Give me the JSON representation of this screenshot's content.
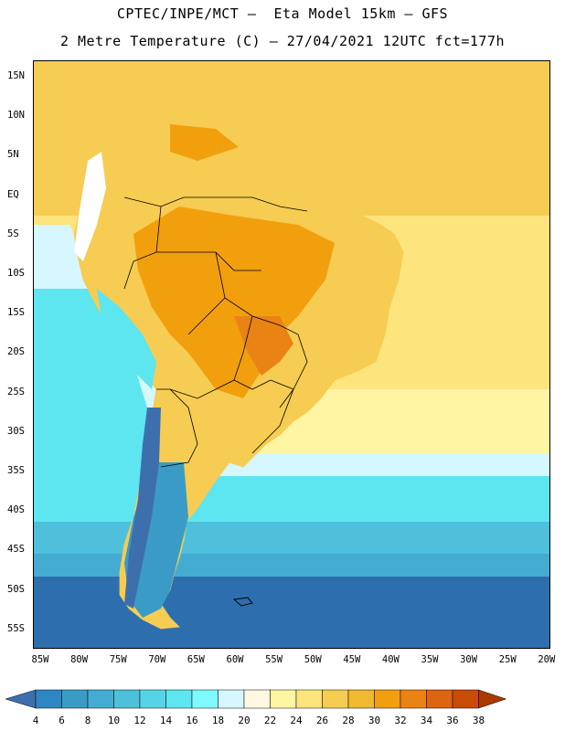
{
  "title": {
    "line1": "CPTEC/INPE/MCT –  Eta Model 15km – GFS",
    "line2": "2 Metre Temperature (C) – 27/04/2021 12UTC fct=177h"
  },
  "latitude_labels": [
    "15N",
    "10N",
    "5N",
    "EQ",
    "5S",
    "10S",
    "15S",
    "20S",
    "25S",
    "30S",
    "35S",
    "40S",
    "45S",
    "50S",
    "55S"
  ],
  "longitude_labels": [
    "85W",
    "80W",
    "75W",
    "70W",
    "65W",
    "60W",
    "55W",
    "50W",
    "45W",
    "40W",
    "35W",
    "30W",
    "25W",
    "20W"
  ],
  "colorbar": {
    "labels": [
      "4",
      "6",
      "8",
      "10",
      "12",
      "14",
      "16",
      "18",
      "20",
      "22",
      "24",
      "26",
      "28",
      "30",
      "32",
      "34",
      "36",
      "38"
    ],
    "colors": [
      "#3e6fad",
      "#2d87c3",
      "#3a9bc7",
      "#44acd2",
      "#4ec0dc",
      "#57d3e7",
      "#5de5f0",
      "#7ff8ff",
      "#d6f7ff",
      "#fff8e2",
      "#fff5a3",
      "#fde47c",
      "#f6cc52",
      "#f1b92f",
      "#f29f0e",
      "#e98314",
      "#dd6410",
      "#c84b06",
      "#aa3a00"
    ]
  },
  "map": {
    "colors": {
      "ocean_north": "#f6cc52",
      "ocean_subtrop": "#fde47c",
      "ocean_mid": "#fff5a3",
      "ocean_cool": "#d6f7ff",
      "ocean_cold1": "#5de5f0",
      "ocean_cold2": "#4ec0dc",
      "ocean_cold3": "#44acd2",
      "ocean_cold4": "#3a9bc7",
      "ocean_deep": "#2d6fae",
      "land_hot": "#f29f0e",
      "land_warm": "#f6cc52",
      "land_very_hot": "#e98314",
      "andes_snow": "#ffffff",
      "andes_cold": "#3e6fad",
      "patagonia": "#3a9bc7",
      "coastline": "#000000",
      "border": "#000000",
      "frame": "#000000"
    }
  }
}
